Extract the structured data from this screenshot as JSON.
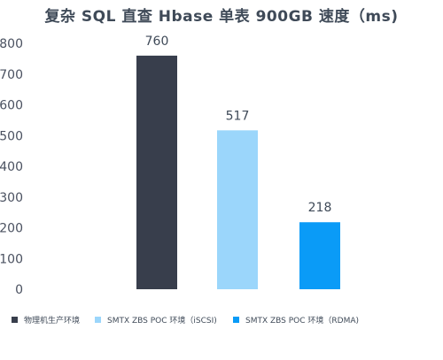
{
  "chart_data": {
    "type": "bar",
    "title": "复杂 SQL 直查 Hbase 单表 900GB 速度（ms)",
    "xlabel": "",
    "ylabel": "",
    "ylim": [
      0,
      800
    ],
    "yticks": [
      0,
      100,
      200,
      300,
      400,
      500,
      600,
      700,
      800
    ],
    "grid": false,
    "legend_position": "bottom",
    "categories": [
      "物理机生产环境",
      "SMTX ZBS POC 环境（iSCSI)",
      "SMTX ZBS POC 环境（RDMA)"
    ],
    "series": [
      {
        "name": "物理机生产环境",
        "color": "#383e4c",
        "values": [
          760,
          null,
          null
        ]
      },
      {
        "name": "SMTX ZBS POC 环境（iSCSI)",
        "color": "#9bd6fb",
        "values": [
          null,
          517,
          null
        ]
      },
      {
        "name": "SMTX ZBS POC 环境（RDMA)",
        "color": "#0a9bf7",
        "values": [
          null,
          null,
          218
        ]
      }
    ]
  }
}
